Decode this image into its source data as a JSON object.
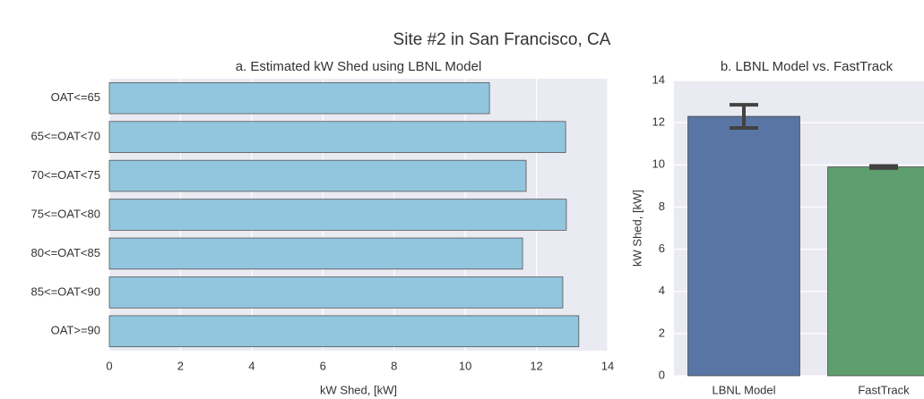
{
  "title": "Site #2 in San Francisco, CA",
  "chart_data": [
    {
      "type": "barh",
      "title": "a. Estimated kW Shed using LBNL Model",
      "xlabel": "kW Shed, [kW]",
      "categories": [
        "OAT<=65",
        "65<=OAT<70",
        "70<=OAT<75",
        "75<=OAT<80",
        "80<=OAT<85",
        "85<=OAT<90",
        "OAT>=90"
      ],
      "values": [
        10.68,
        12.82,
        11.71,
        12.84,
        11.61,
        12.74,
        13.19
      ],
      "color": "#92c6de",
      "xlim": [
        0,
        14
      ],
      "xticks": [
        0,
        2,
        4,
        6,
        8,
        10,
        12,
        14
      ],
      "grid": true
    },
    {
      "type": "bar",
      "title": "b. LBNL Model vs. FastTrack",
      "ylabel": "kW Shed, [kW]",
      "categories": [
        "LBNL Model",
        "FastTrack"
      ],
      "values": [
        12.3,
        9.9
      ],
      "colors": [
        "#5975a4",
        "#5f9e6e"
      ],
      "ci_low": [
        11.75,
        9.85
      ],
      "ci_high": [
        12.85,
        9.95
      ],
      "ylim": [
        0,
        14
      ],
      "yticks": [
        0,
        2,
        4,
        6,
        8,
        10,
        12,
        14
      ],
      "grid": true
    }
  ]
}
